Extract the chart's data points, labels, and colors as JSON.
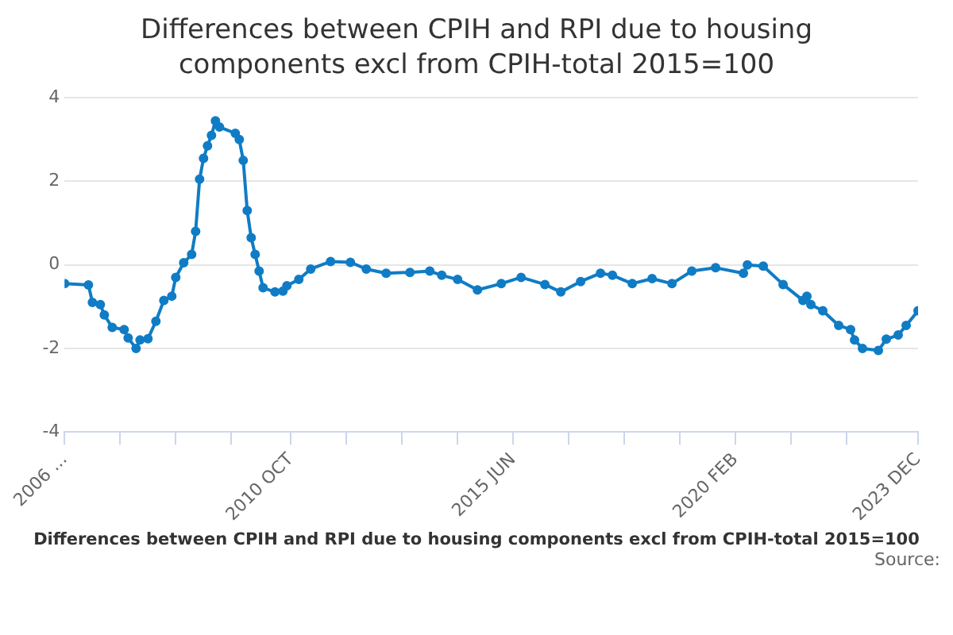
{
  "chart_data": {
    "type": "line",
    "title": "Differences between CPIH and RPI due to housing components excl from CPIH-total 2015=100",
    "annotations": [
      "Differences between CPIH and RPI due to housing components excl from CPIH-total 2015=100",
      "Source:"
    ],
    "x": [
      "2006-01",
      "2006-07",
      "2006-08",
      "2006-10",
      "2006-11",
      "2007-01",
      "2007-04",
      "2007-05",
      "2007-07",
      "2007-08",
      "2007-10",
      "2007-12",
      "2008-02",
      "2008-04",
      "2008-05",
      "2008-07",
      "2008-09",
      "2008-10",
      "2008-11",
      "2008-12",
      "2009-01",
      "2009-02",
      "2009-03",
      "2009-04",
      "2009-08",
      "2009-09",
      "2009-10",
      "2009-11",
      "2009-12",
      "2010-01",
      "2010-02",
      "2010-03",
      "2010-06",
      "2010-08",
      "2010-09",
      "2010-12",
      "2011-03",
      "2011-08",
      "2012-01",
      "2012-05",
      "2012-10",
      "2013-04",
      "2013-09",
      "2013-12",
      "2014-04",
      "2014-09",
      "2015-03",
      "2015-08",
      "2016-02",
      "2016-06",
      "2016-11",
      "2017-04",
      "2017-07",
      "2017-12",
      "2018-05",
      "2018-10",
      "2019-03",
      "2019-09",
      "2020-04",
      "2020-05",
      "2020-09",
      "2021-02",
      "2021-07",
      "2021-08",
      "2021-09",
      "2021-12",
      "2022-04",
      "2022-07",
      "2022-08",
      "2022-10",
      "2023-02",
      "2023-04",
      "2023-07",
      "2023-09",
      "2023-12"
    ],
    "series": [
      {
        "color": "#0f7cc5",
        "values": [
          -0.45,
          -0.48,
          -0.9,
          -0.95,
          -1.2,
          -1.5,
          -1.55,
          -1.75,
          -2.0,
          -1.8,
          -1.77,
          -1.35,
          -0.85,
          -0.75,
          -0.3,
          0.05,
          0.25,
          0.8,
          2.05,
          2.55,
          2.85,
          3.1,
          3.45,
          3.3,
          3.15,
          3.0,
          2.5,
          1.3,
          0.65,
          0.25,
          -0.15,
          -0.55,
          -0.65,
          -0.63,
          -0.5,
          -0.35,
          -0.1,
          0.08,
          0.06,
          -0.1,
          -0.2,
          -0.18,
          -0.15,
          -0.25,
          -0.35,
          -0.6,
          -0.45,
          -0.3,
          -0.47,
          -0.65,
          -0.4,
          -0.2,
          -0.25,
          -0.45,
          -0.33,
          -0.45,
          -0.15,
          -0.07,
          -0.2,
          0.0,
          -0.03,
          -0.47,
          -0.85,
          -0.75,
          -0.95,
          -1.1,
          -1.45,
          -1.55,
          -1.8,
          -2.0,
          -2.05,
          -1.78,
          -1.68,
          -1.45,
          -1.1
        ]
      }
    ],
    "xlim": [
      "2006-01",
      "2023-12"
    ],
    "xticks": [
      {
        "value": "2006-01",
        "label": "2006 ..."
      },
      {
        "value": "2007-03",
        "label": null
      },
      {
        "value": "2008-05",
        "label": null
      },
      {
        "value": "2009-07",
        "label": null
      },
      {
        "value": "2010-10",
        "label": "2010 OCT"
      },
      {
        "value": "2011-12",
        "label": null
      },
      {
        "value": "2013-02",
        "label": null
      },
      {
        "value": "2014-04",
        "label": null
      },
      {
        "value": "2015-06",
        "label": "2015 JUN"
      },
      {
        "value": "2016-08",
        "label": null
      },
      {
        "value": "2017-10",
        "label": null
      },
      {
        "value": "2018-12",
        "label": null
      },
      {
        "value": "2020-02",
        "label": "2020 FEB"
      },
      {
        "value": "2021-04",
        "label": null
      },
      {
        "value": "2022-06",
        "label": null
      },
      {
        "value": "2023-12",
        "label": "2023 DEC"
      }
    ],
    "ylim": [
      -4,
      4
    ],
    "yticks": [
      -4,
      -2,
      0,
      2,
      4
    ],
    "grid": "y",
    "legend": false,
    "marker": "circle",
    "line_style": "solid"
  }
}
